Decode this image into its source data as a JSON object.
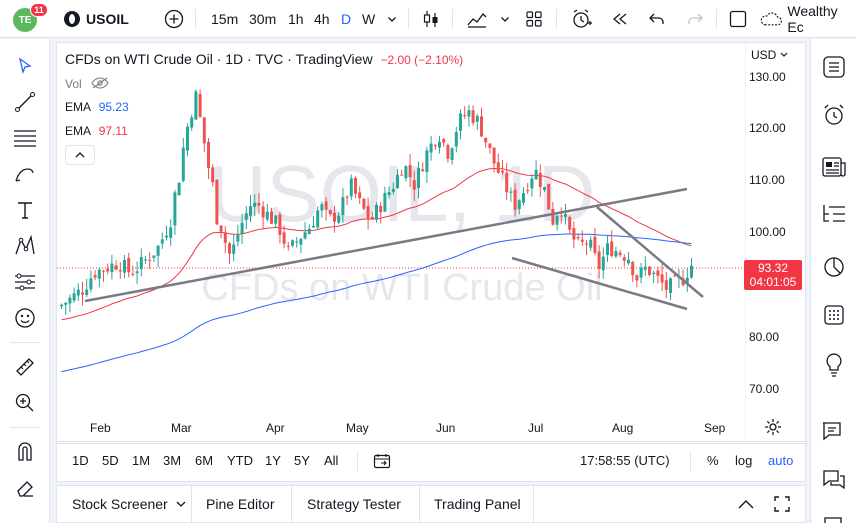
{
  "topbar": {
    "badge_count": "11",
    "logo_text": "TE",
    "symbol": "USOIL",
    "intervals": [
      "15m",
      "30m",
      "1h",
      "4h",
      "D",
      "W"
    ],
    "active_interval": "D",
    "account_label": "Wealthy Ec"
  },
  "legend": {
    "title": "CFDs on WTI Crude Oil · 1D · TVC · TradingView",
    "change": "−2.00 (−2.10%)",
    "vol_label": "Vol",
    "ema1_label": "EMA",
    "ema1_value": "95.23",
    "ema2_label": "EMA",
    "ema2_value": "97.11"
  },
  "watermark": {
    "big": "USOIL, 1D",
    "small": "CFDs on WTI Crude Oil"
  },
  "price_axis": {
    "currency": "USD",
    "ticks": [
      "130.00",
      "120.00",
      "110.00",
      "100.00",
      "80.00",
      "70.00"
    ],
    "last_price": "93.32",
    "countdown": "04:01:05"
  },
  "time_axis": {
    "labels": [
      "Feb",
      "Mar",
      "Apr",
      "May",
      "Jun",
      "Jul",
      "Aug",
      "Sep"
    ]
  },
  "range_bar": {
    "ranges": [
      "1D",
      "5D",
      "1M",
      "3M",
      "6M",
      "YTD",
      "1Y",
      "5Y",
      "All"
    ],
    "clock": "17:58:55 (UTC)",
    "percent": "%",
    "log": "log",
    "auto": "auto"
  },
  "bottom_tabs": {
    "stock_screener": "Stock Screener",
    "pine_editor": "Pine Editor",
    "strategy_tester": "Strategy Tester",
    "trading_panel": "Trading Panel"
  },
  "colors": {
    "up": "#26a69a",
    "down": "#ef5350",
    "ema_fast": "#2962ff",
    "ema_slow": "#f23645",
    "trendline": "#787b86",
    "accent": "#2962ff"
  },
  "chart_data": {
    "type": "candlestick",
    "symbol": "USOIL",
    "interval": "1D",
    "ylim": [
      65,
      133
    ],
    "last": 93.32,
    "ema_fast_last": 95.23,
    "ema_slow_last": 97.11
  }
}
